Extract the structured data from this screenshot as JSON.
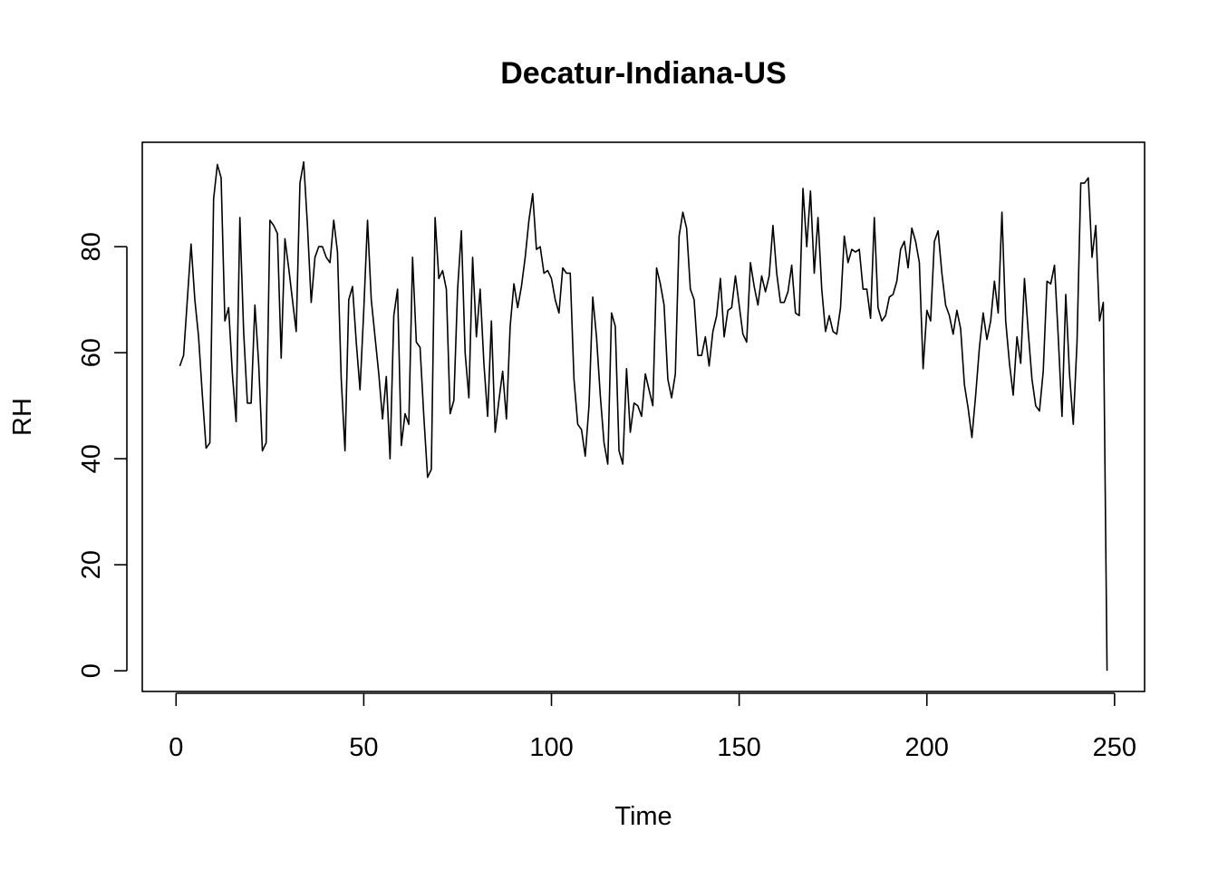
{
  "chart_data": {
    "type": "line",
    "title": "Decatur-Indiana-US",
    "xlabel": "Time",
    "ylabel": "RH",
    "xlim": [
      -9,
      258
    ],
    "ylim": [
      -3.9,
      99.7
    ],
    "xticks": [
      0,
      50,
      100,
      150,
      200,
      250
    ],
    "yticks": [
      0,
      20,
      40,
      60,
      80
    ],
    "grid": false,
    "legend": "none",
    "line_color": "#000000",
    "series": [
      {
        "x": [
          1,
          2,
          3,
          4,
          5,
          6,
          7,
          8,
          9,
          10,
          11,
          12,
          13,
          14,
          15,
          16,
          17,
          18,
          19,
          20,
          21,
          22,
          23,
          24,
          25,
          26,
          27,
          28,
          29,
          30,
          31,
          32,
          33,
          34,
          35,
          36,
          37,
          38,
          39,
          40,
          41,
          42,
          43,
          44,
          45,
          46,
          47,
          48,
          49,
          50,
          51,
          52,
          53,
          54,
          55,
          56,
          57,
          58,
          59,
          60,
          61,
          62,
          63,
          64,
          65,
          66,
          67,
          68,
          69,
          70,
          71,
          72,
          73,
          74,
          75,
          76,
          77,
          78,
          79,
          80,
          81,
          82,
          83,
          84,
          85,
          86,
          87,
          88,
          89,
          90,
          91,
          92,
          93,
          94,
          95,
          96,
          97,
          98,
          99,
          100,
          101,
          102,
          103,
          104,
          105,
          106,
          107,
          108,
          109,
          110,
          111,
          112,
          113,
          114,
          115,
          116,
          117,
          118,
          119,
          120,
          121,
          122,
          123,
          124,
          125,
          126,
          127,
          128,
          129,
          130,
          131,
          132,
          133,
          134,
          135,
          136,
          137,
          138,
          139,
          140,
          141,
          142,
          143,
          144,
          145,
          146,
          147,
          148,
          149,
          150,
          151,
          152,
          153,
          154,
          155,
          156,
          157,
          158,
          159,
          160,
          161,
          162,
          163,
          164,
          165,
          166,
          167,
          168,
          169,
          170,
          171,
          172,
          173,
          174,
          175,
          176,
          177,
          178,
          179,
          180,
          181,
          182,
          183,
          184,
          185,
          186,
          187,
          188,
          189,
          190,
          191,
          192,
          193,
          194,
          195,
          196,
          197,
          198,
          199,
          200,
          201,
          202,
          203,
          204,
          205,
          206,
          207,
          208,
          209,
          210,
          211,
          212,
          213,
          214,
          215,
          216,
          217,
          218,
          219,
          220,
          221,
          222,
          223,
          224,
          225,
          226,
          227,
          228,
          229,
          230,
          231,
          232,
          233,
          234,
          235,
          236,
          237,
          238,
          239,
          240,
          241,
          242,
          243,
          244,
          245,
          246,
          247,
          248
        ],
        "y": [
          57.5,
          59.5,
          70,
          80.5,
          70,
          63,
          52,
          42,
          43,
          89,
          95.5,
          93,
          66,
          68.5,
          56,
          47,
          85.5,
          64,
          50.5,
          50.5,
          69,
          58,
          41.5,
          43,
          85,
          84,
          82.5,
          59,
          81.5,
          76,
          70,
          64,
          92,
          96,
          84,
          69.5,
          78,
          80,
          80,
          78,
          77,
          85,
          79,
          55,
          41.5,
          70,
          72.5,
          62,
          53,
          68,
          85,
          70,
          63,
          56,
          47.5,
          55.5,
          40,
          67,
          72,
          42.5,
          48.5,
          46.5,
          78,
          62,
          61,
          48,
          36.5,
          38,
          85.5,
          74,
          75.5,
          72,
          48.5,
          51,
          72,
          83,
          60,
          51.5,
          78,
          63,
          72,
          58,
          48,
          66,
          45,
          51,
          56.5,
          47.5,
          65,
          73,
          68.5,
          72.5,
          78,
          85,
          90,
          79.5,
          80,
          75,
          75.5,
          74,
          70,
          67.5,
          76,
          75,
          75,
          55,
          46.5,
          45.5,
          40.5,
          50,
          70.5,
          63,
          52,
          43,
          39,
          67.5,
          65,
          41.5,
          39,
          57,
          45,
          50.5,
          50,
          48,
          56,
          53,
          50,
          76,
          73,
          69,
          55,
          51.5,
          56,
          82,
          86.5,
          83.5,
          72,
          70,
          59.5,
          59.5,
          63,
          57.5,
          64,
          67,
          74,
          63,
          68,
          68.5,
          74.5,
          69,
          63.5,
          62,
          77,
          72.5,
          69,
          74.5,
          71.5,
          74.5,
          84,
          75,
          69.5,
          69.5,
          71.5,
          76.5,
          67.5,
          67,
          91,
          80,
          90.5,
          75,
          85.5,
          72,
          64,
          67,
          64,
          63.5,
          68.5,
          82,
          77,
          79.5,
          79,
          79.5,
          72,
          72,
          66.5,
          85.5,
          68.5,
          66,
          67,
          70.5,
          71,
          73.5,
          79.5,
          81,
          76,
          83.5,
          81,
          77,
          57,
          68,
          66,
          81,
          83,
          75,
          69,
          67,
          63.5,
          68,
          64.5,
          54,
          49.5,
          44,
          52,
          61,
          67.5,
          62.5,
          66,
          73.5,
          67.5,
          86.5,
          66,
          58,
          52,
          63,
          58,
          74,
          64,
          55,
          50,
          49,
          56.5,
          73.5,
          73,
          76.5,
          63,
          48,
          71,
          56,
          46.5,
          62,
          92,
          92,
          93,
          78,
          84,
          66,
          69.5,
          0
        ]
      }
    ]
  }
}
